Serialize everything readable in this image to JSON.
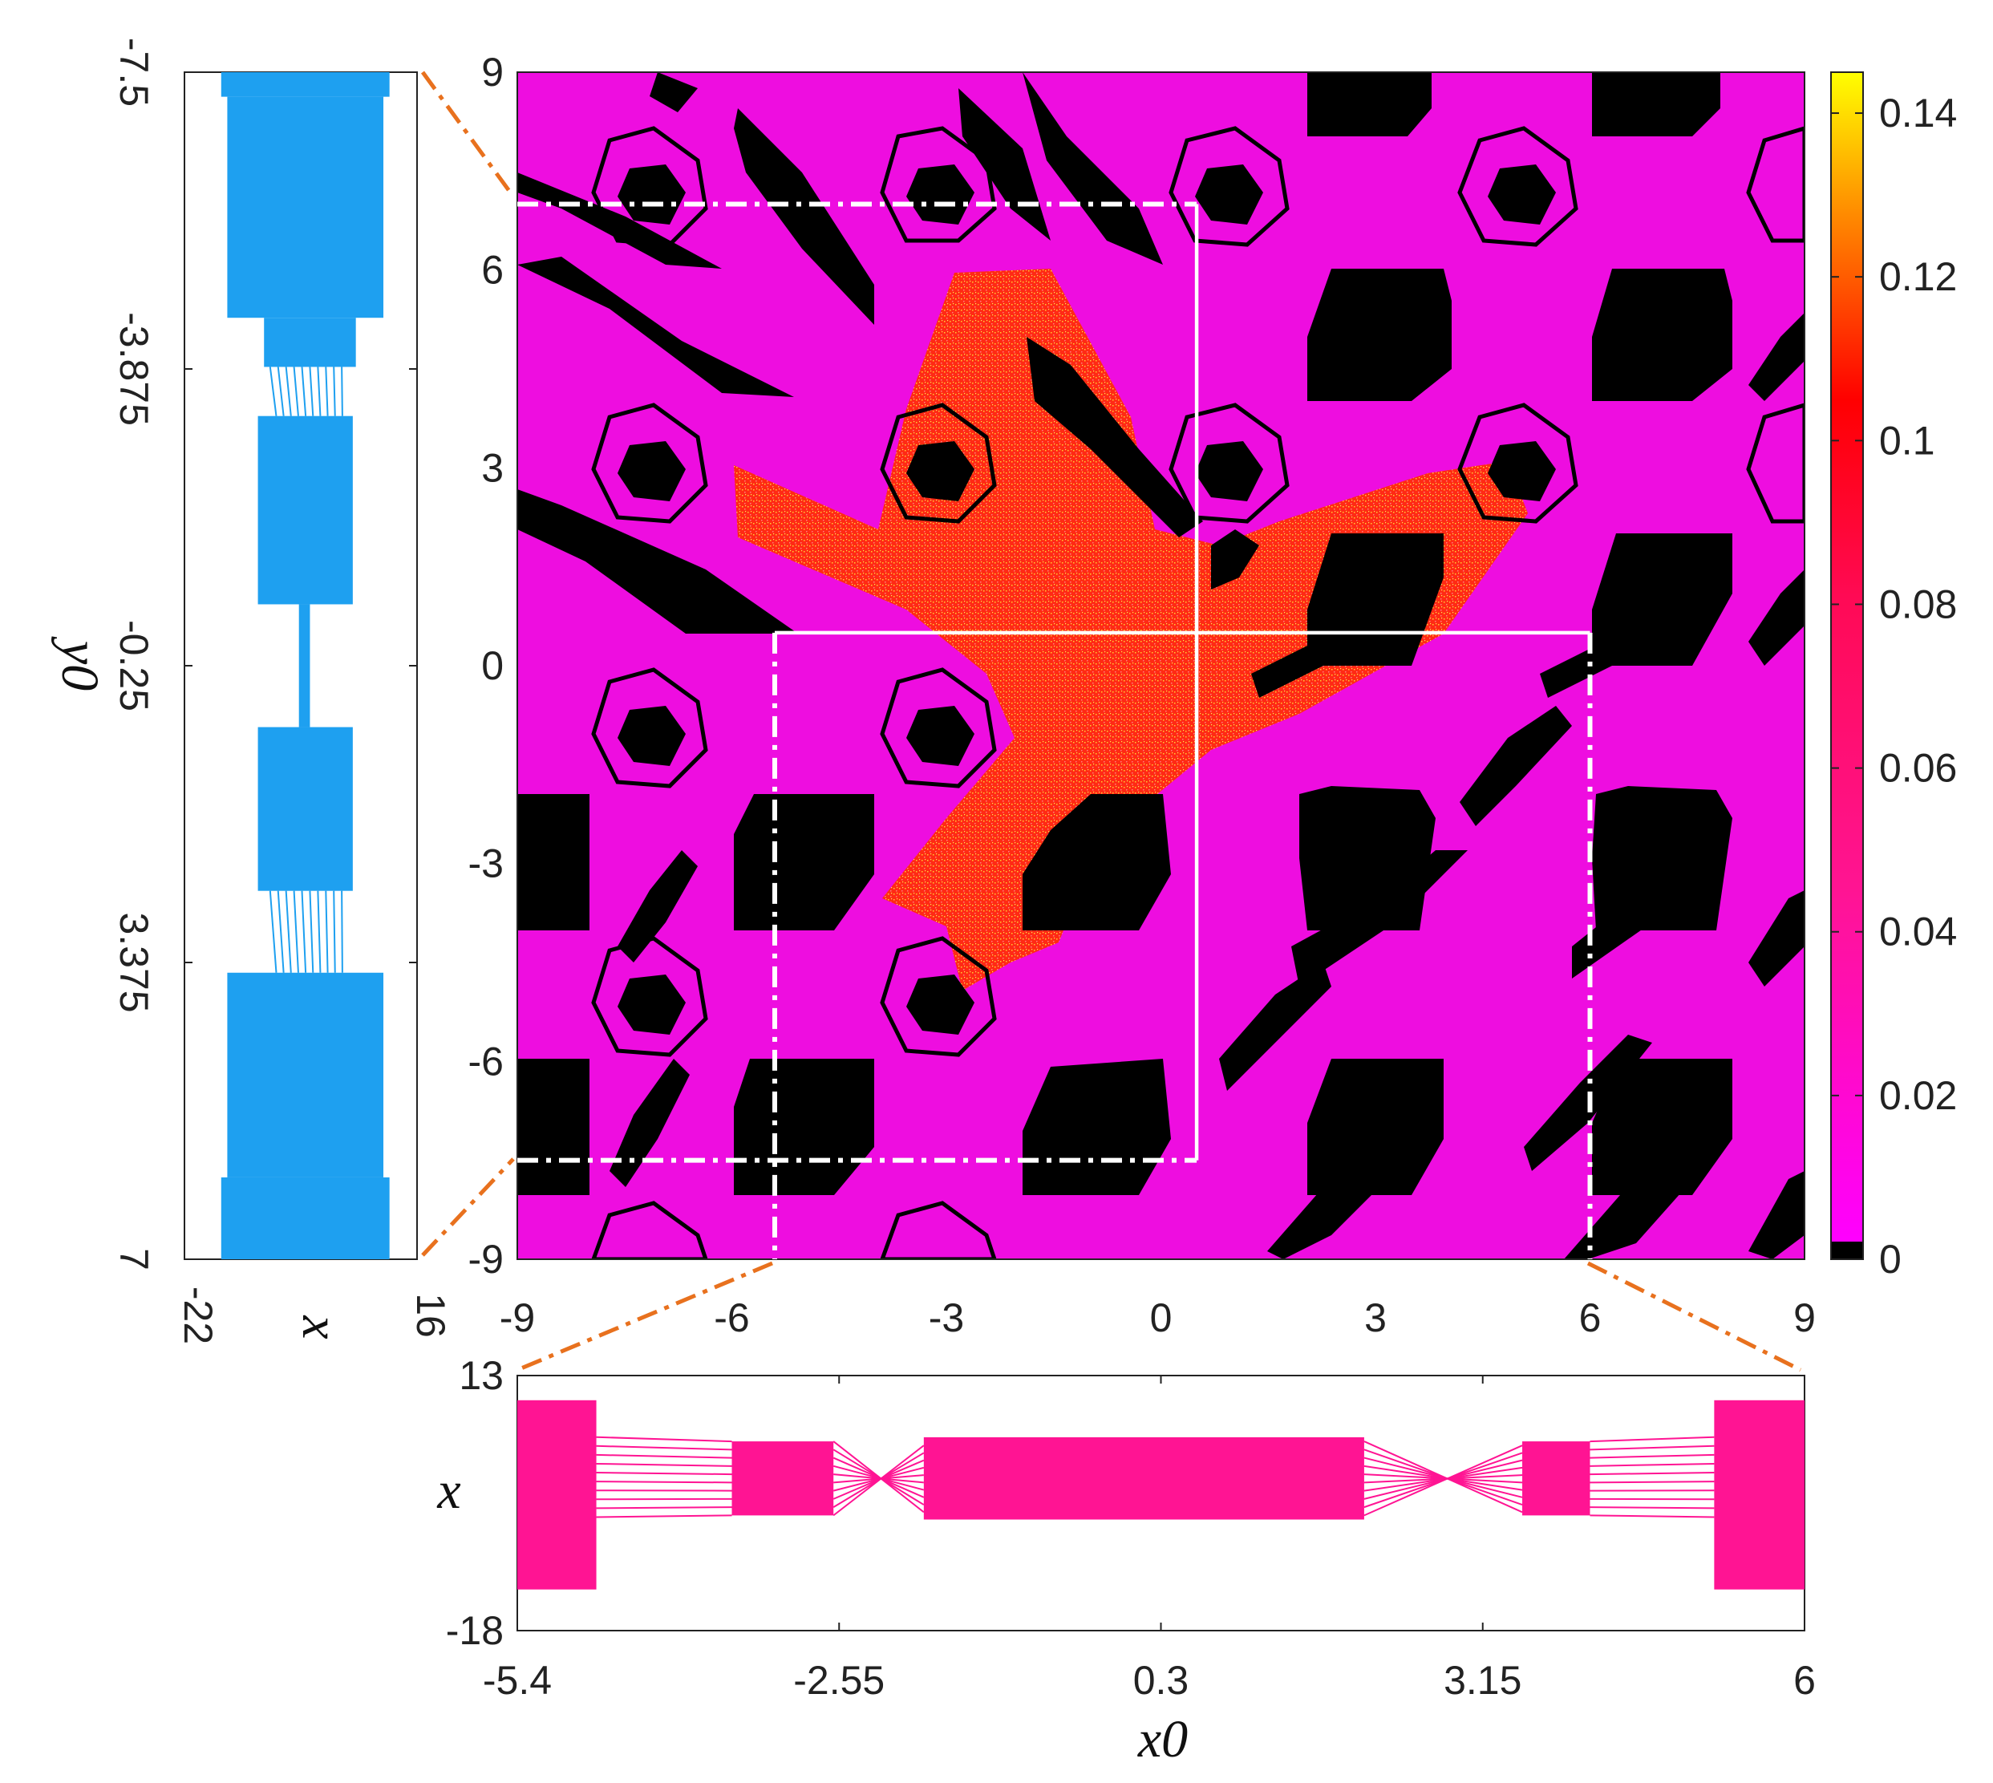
{
  "chart_data": [
    {
      "type": "heatmap",
      "xlabel": "",
      "ylabel": "",
      "xlim": [
        -9,
        9
      ],
      "ylim": [
        -9,
        9
      ],
      "x_ticks": [
        "-9",
        "-6",
        "-3",
        "0",
        "3",
        "6",
        "9"
      ],
      "y_ticks": [
        "9",
        "6",
        "3",
        "0",
        "-3",
        "-6",
        "-9"
      ],
      "colorbar": {
        "range": [
          0,
          0.145
        ],
        "ticks": [
          "0.14",
          "0.12",
          "0.1",
          "0.08",
          "0.06",
          "0.04",
          "0.02",
          "0"
        ],
        "colors": {
          "zero": "#000000",
          "low": "#ff00ff",
          "mid": "#ff0066",
          "high": "#ff0000",
          "top": "#ffff00"
        }
      },
      "regions": {
        "background_value": 0.02,
        "chaotic_value": 0.1,
        "black_value": 0
      },
      "guides": {
        "vertical_line_x0": 0.5,
        "horizontal_line_y0": 0.5,
        "zoom_box_left": {
          "x": [
            -9,
            0.5
          ],
          "y": [
            -7.5,
            7
          ]
        },
        "zoom_box_bottom": {
          "x": [
            -5.4,
            6
          ],
          "y": [
            -9,
            0.5
          ]
        }
      }
    },
    {
      "type": "scatter",
      "xlabel": "x",
      "ylabel": "y0",
      "xlim": [
        -22,
        16
      ],
      "ylim": [
        -7.5,
        7
      ],
      "x_ticks": [
        "-22",
        "16"
      ],
      "y_ticks": [
        "-7.5",
        "-3.875",
        "-0.25",
        "3.375",
        "7"
      ],
      "color": "#1ea0f0",
      "bands": [
        {
          "y": [
            -7.5,
            -7.2
          ],
          "x": [
            -16,
            11.5
          ]
        },
        {
          "y": [
            -7.2,
            -4.5
          ],
          "x": [
            -15,
            10.5
          ]
        },
        {
          "y": [
            -4.5,
            -3.9
          ],
          "x": [
            -9,
            6
          ]
        },
        {
          "y": [
            -3.3,
            -1.0
          ],
          "x": [
            -10,
            5.5
          ]
        },
        {
          "y": [
            0.5,
            2.5
          ],
          "x": [
            -10,
            5.5
          ]
        },
        {
          "y": [
            3.5,
            6.0
          ],
          "x": [
            -15,
            10.5
          ]
        },
        {
          "y": [
            6.0,
            7.0
          ],
          "x": [
            -16,
            11.5
          ]
        }
      ]
    },
    {
      "type": "scatter",
      "xlabel": "x0",
      "ylabel": "x",
      "xlim": [
        -5.4,
        6
      ],
      "ylim": [
        -18,
        13
      ],
      "x_ticks": [
        "-5.4",
        "-2.55",
        "0.3",
        "3.15",
        "6"
      ],
      "y_ticks": [
        "13",
        "-18"
      ],
      "color": "#ff1493",
      "bands": [
        {
          "x": [
            -5.4,
            -4.7
          ],
          "y": [
            -13,
            10
          ]
        },
        {
          "x": [
            -3.5,
            -2.6
          ],
          "y": [
            -4,
            5
          ]
        },
        {
          "x": [
            -1.8,
            2.1
          ],
          "y": [
            -4.5,
            5.5
          ]
        },
        {
          "x": [
            3.5,
            4.1
          ],
          "y": [
            -4,
            5
          ]
        },
        {
          "x": [
            5.2,
            6.0
          ],
          "y": [
            -13,
            10
          ]
        }
      ]
    }
  ]
}
